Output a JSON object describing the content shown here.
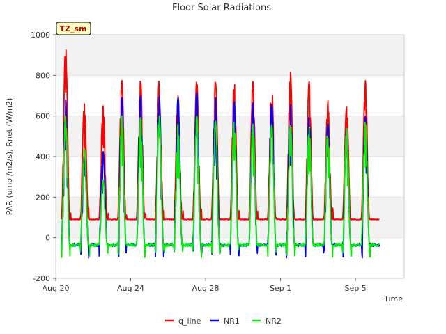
{
  "chart_data": {
    "type": "line",
    "title": "Floor Solar Radiations",
    "xlabel": "Time",
    "ylabel": "PAR (umol/m2/s), Rnet (W/m2)",
    "badge": "TZ_sm",
    "x_start": "Aug 20",
    "x_range_days": [
      0,
      18.6
    ],
    "ylim": [
      -200,
      1000
    ],
    "yticks": [
      -200,
      0,
      200,
      400,
      600,
      800,
      1000
    ],
    "xticks": [
      {
        "label": "Aug 20",
        "day": 0
      },
      {
        "label": "Aug 24",
        "day": 4
      },
      {
        "label": "Aug 28",
        "day": 8
      },
      {
        "label": "Sep 1",
        "day": 12
      },
      {
        "label": "Sep 5",
        "day": 16
      }
    ],
    "grid": true,
    "legend_position": "bottom-center",
    "data_span_days": [
      0.3,
      17.3
    ],
    "series": [
      {
        "name": "q_line",
        "color": "#ff0000",
        "baseline": 90,
        "daily_peaks": [
          950,
          660,
          650,
          775,
          780,
          780,
          700,
          775,
          775,
          775,
          770,
          770,
          815,
          770,
          675,
          645,
          775
        ]
      },
      {
        "name": "NR1",
        "color": "#0000ff",
        "baseline": -35,
        "daily_peaks": [
          680,
          420,
          425,
          690,
          700,
          695,
          690,
          715,
          690,
          670,
          665,
          665,
          655,
          600,
          560,
          540,
          600
        ]
      },
      {
        "name": "NR2",
        "color": "#00ee00",
        "baseline": -35,
        "daily_peaks": [
          600,
          440,
          285,
          600,
          600,
          600,
          560,
          600,
          575,
          575,
          560,
          555,
          560,
          545,
          545,
          540,
          575
        ]
      }
    ]
  }
}
